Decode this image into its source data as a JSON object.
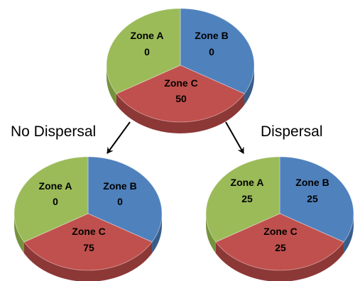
{
  "colors": {
    "zone_a": "#9bbb59",
    "zone_b": "#4f81bd",
    "zone_c": "#c0504d",
    "zone_a_side": "#76923c",
    "zone_b_side": "#385d8a",
    "zone_c_side": "#8c3836"
  },
  "branches": {
    "left_label": "No Dispersal",
    "right_label": "Dispersal"
  },
  "pies": [
    {
      "id": "initial",
      "zones": [
        {
          "name": "Zone A",
          "value": "0"
        },
        {
          "name": "Zone B",
          "value": "0"
        },
        {
          "name": "Zone C",
          "value": "50"
        }
      ]
    },
    {
      "id": "no-dispersal",
      "zones": [
        {
          "name": "Zone A",
          "value": "0"
        },
        {
          "name": "Zone B",
          "value": "0"
        },
        {
          "name": "Zone C",
          "value": "75"
        }
      ]
    },
    {
      "id": "dispersal",
      "zones": [
        {
          "name": "Zone A",
          "value": "25"
        },
        {
          "name": "Zone B",
          "value": "25"
        },
        {
          "name": "Zone C",
          "value": "25"
        }
      ]
    }
  ]
}
